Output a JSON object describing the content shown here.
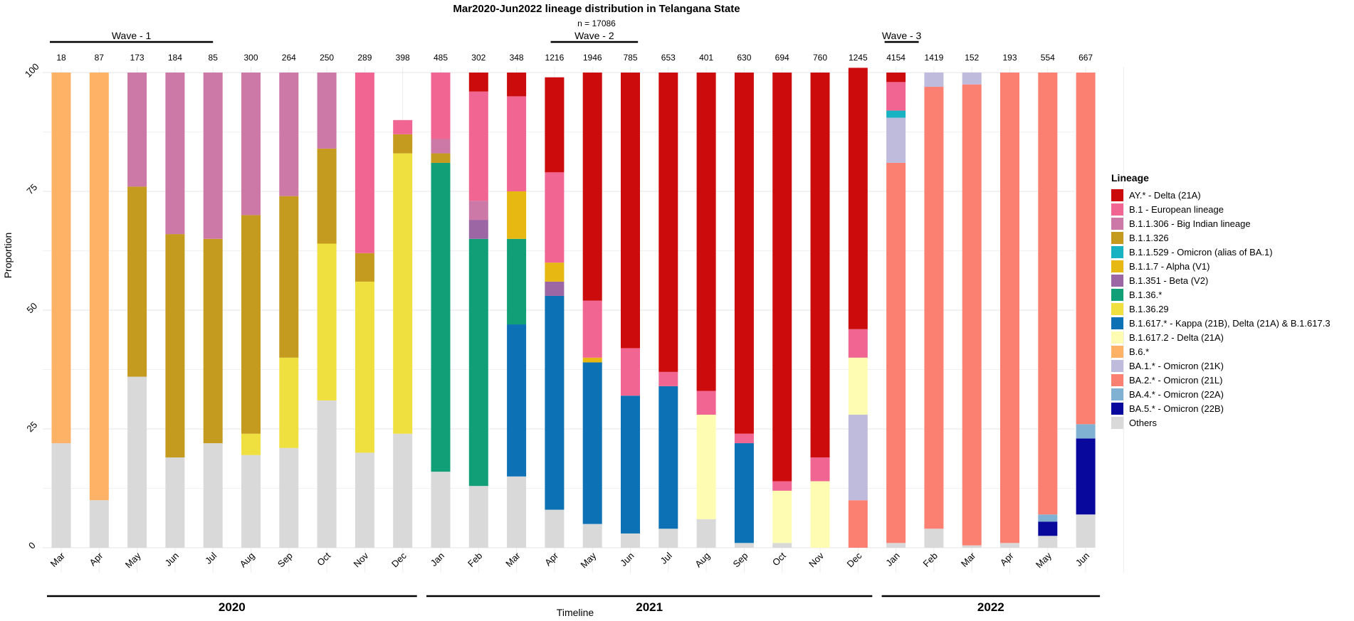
{
  "chart_data": {
    "type": "bar",
    "stacked": true,
    "title": "Mar2020-Jun2022 lineage distribution in Telangana State",
    "subtitle": "n = 17086",
    "xlabel": "Timeline",
    "ylabel": "Proportion",
    "ylim": [
      0,
      100
    ],
    "yticks": [
      0,
      25,
      50,
      75,
      100
    ],
    "legend_title": "Lineage",
    "legend_position": "right",
    "categories": [
      "Mar",
      "Apr",
      "May",
      "Jun",
      "Jul",
      "Aug",
      "Sep",
      "Oct",
      "Nov",
      "Dec",
      "Jan",
      "Feb",
      "Mar",
      "Apr",
      "May",
      "Jun",
      "Jul",
      "Aug",
      "Sep",
      "Oct",
      "Nov",
      "Dec",
      "Jan",
      "Feb",
      "Mar",
      "Apr",
      "May",
      "Jun"
    ],
    "sample_counts": [
      "18",
      "87",
      "173",
      "184",
      "85",
      "300",
      "264",
      "250",
      "289",
      "398",
      "485",
      "302",
      "348",
      "1216",
      "1946",
      "785",
      "653",
      "401",
      "630",
      "694",
      "760",
      "1245",
      "4154",
      "1419",
      "152",
      "193",
      "554",
      "667"
    ],
    "years": [
      {
        "label": "2020",
        "start_index": 0,
        "end_index": 9
      },
      {
        "label": "2021",
        "start_index": 10,
        "end_index": 21
      },
      {
        "label": "2022",
        "start_index": 22,
        "end_index": 27
      }
    ],
    "waves": [
      {
        "label": "Wave - 1",
        "start_index": 0,
        "end_index": 5
      },
      {
        "label": "Wave - 2",
        "start_index": 13,
        "end_index": 15
      },
      {
        "label": "Wave - 3",
        "start_index": 21,
        "end_index": 22
      }
    ],
    "series": [
      {
        "name": "AY.* - Delta (21A)",
        "color": "#cc0c0c",
        "values": [
          0,
          0,
          0,
          0,
          0,
          0,
          0,
          0,
          0,
          0,
          0,
          4,
          5,
          20,
          48,
          58,
          63,
          67,
          76,
          86,
          81,
          55,
          2,
          0,
          0,
          0,
          0,
          0
        ]
      },
      {
        "name": "B.1 - European lineage",
        "color": "#f06592",
        "values": [
          0,
          0,
          0,
          0,
          0,
          0,
          0,
          0,
          38,
          3,
          14,
          23,
          20,
          19,
          12,
          10,
          3,
          5,
          2,
          2,
          5,
          6,
          6,
          0,
          0,
          0,
          0,
          0
        ]
      },
      {
        "name": "B.1.1.306 - Big Indian lineage",
        "color": "#cc79a7",
        "values": [
          0,
          0,
          24,
          34,
          35,
          30,
          26,
          16,
          0,
          0,
          3,
          4,
          0,
          0,
          0,
          0,
          0,
          0,
          0,
          0,
          0,
          0,
          0,
          0,
          0,
          0,
          0,
          0
        ]
      },
      {
        "name": "B.1.1.326",
        "color": "#c49a1f",
        "values": [
          0,
          0,
          40,
          47,
          43,
          46,
          34,
          20,
          6,
          4,
          2,
          0,
          0,
          0,
          0,
          0,
          0,
          0,
          0,
          0,
          0,
          0,
          0,
          0,
          0,
          0,
          0,
          0
        ]
      },
      {
        "name": "B.1.1.529 - Omicron (alias of BA.1)",
        "color": "#17b3c2",
        "values": [
          0,
          0,
          0,
          0,
          0,
          0,
          0,
          0,
          0,
          0,
          0,
          0,
          0,
          0,
          0,
          0,
          0,
          0,
          0,
          0,
          0,
          0,
          1.5,
          0,
          0,
          0,
          0,
          0
        ]
      },
      {
        "name": "B.1.1.7 - Alpha (V1)",
        "color": "#e6b811",
        "values": [
          0,
          0,
          0,
          0,
          0,
          0,
          0,
          0,
          0,
          0,
          0,
          0,
          10,
          4,
          1,
          0,
          0,
          0,
          0,
          0,
          0,
          0,
          0,
          0,
          0,
          0,
          0,
          0
        ]
      },
      {
        "name": "B.1.351 - Beta (V2)",
        "color": "#9c66a5",
        "values": [
          0,
          0,
          0,
          0,
          0,
          0,
          0,
          0,
          0,
          0,
          0,
          4,
          0,
          3,
          0,
          0,
          0,
          0,
          0,
          0,
          0,
          0,
          0,
          0,
          0,
          0,
          0,
          0
        ]
      },
      {
        "name": "B.1.36.*",
        "color": "#109f77",
        "values": [
          0,
          0,
          0,
          0,
          0,
          0,
          0,
          0,
          0,
          0,
          65,
          52,
          18,
          0,
          0,
          0,
          0,
          0,
          0,
          0,
          0,
          0,
          0,
          0,
          0,
          0,
          0,
          0
        ]
      },
      {
        "name": "B.1.36.29",
        "color": "#efe040",
        "values": [
          0,
          0,
          0,
          0,
          0,
          4.5,
          19,
          33,
          36,
          59,
          0,
          0,
          0,
          0,
          0,
          0,
          0,
          0,
          0,
          0,
          0,
          0,
          0,
          0,
          0,
          0,
          0,
          0
        ]
      },
      {
        "name": "B.1.617.* - Kappa (21B), Delta (21A) & B.1.617.3",
        "color": "#0d72b5",
        "values": [
          0,
          0,
          0,
          0,
          0,
          0,
          0,
          0,
          0,
          0,
          0,
          0,
          32,
          45,
          34,
          29,
          30,
          0,
          21,
          0,
          0,
          0,
          0,
          0,
          0,
          0,
          0,
          0
        ]
      },
      {
        "name": "B.1.617.2 - Delta (21A)",
        "color": "#fdfcb2",
        "values": [
          0,
          0,
          0,
          0,
          0,
          0,
          0,
          0,
          0,
          0,
          0,
          0,
          0,
          0,
          0,
          0,
          0,
          22,
          0,
          11,
          14,
          12,
          0,
          0,
          0,
          0,
          0,
          0
        ]
      },
      {
        "name": "B.6.*",
        "color": "#fdb265",
        "values": [
          78,
          90,
          0,
          0,
          0,
          0,
          0,
          0,
          0,
          0,
          0,
          0,
          0,
          0,
          0,
          0,
          0,
          0,
          0,
          0,
          0,
          0,
          0,
          0,
          0,
          0,
          0,
          0
        ]
      },
      {
        "name": "BA.1.* - Omicron (21K)",
        "color": "#bfbbdc",
        "values": [
          0,
          0,
          0,
          0,
          0,
          0,
          0,
          0,
          0,
          0,
          0,
          0,
          0,
          0,
          0,
          0,
          0,
          0,
          0,
          0,
          0,
          18,
          9.5,
          3,
          2.5,
          0,
          0,
          0
        ]
      },
      {
        "name": "BA.2.* - Omicron (21L)",
        "color": "#fb8072",
        "values": [
          0,
          0,
          0,
          0,
          0,
          0,
          0,
          0,
          0,
          0,
          0,
          0,
          0,
          0,
          0,
          0,
          0,
          0,
          0,
          0,
          0,
          10,
          80,
          93,
          97,
          99,
          93,
          74
        ]
      },
      {
        "name": "BA.4.* - Omicron (22A)",
        "color": "#80b1d3",
        "values": [
          0,
          0,
          0,
          0,
          0,
          0,
          0,
          0,
          0,
          0,
          0,
          0,
          0,
          0,
          0,
          0,
          0,
          0,
          0,
          0,
          0,
          0,
          0,
          0,
          0,
          0,
          1.5,
          3
        ]
      },
      {
        "name": "BA.5.* - Omicron (22B)",
        "color": "#08089c",
        "values": [
          0,
          0,
          0,
          0,
          0,
          0,
          0,
          0,
          0,
          0,
          0,
          0,
          0,
          0,
          0,
          0,
          0,
          0,
          0,
          0,
          0,
          0,
          0,
          0,
          0,
          0,
          3,
          16
        ]
      },
      {
        "name": "Others",
        "color": "#d9d9d9",
        "values": [
          22,
          10,
          36,
          19,
          22,
          19.5,
          21,
          31,
          20,
          24,
          16,
          13,
          15,
          8,
          5,
          3,
          4,
          6,
          1,
          1,
          0,
          0,
          1,
          4,
          0.5,
          1,
          2.5,
          7
        ]
      }
    ]
  }
}
